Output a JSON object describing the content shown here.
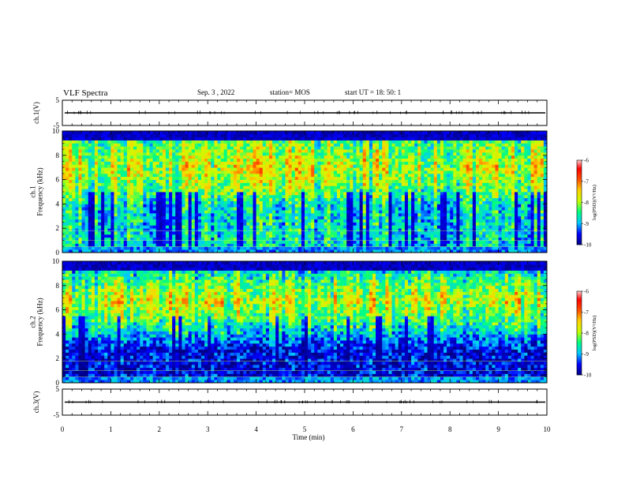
{
  "header": {
    "title": "VLF Spectra",
    "date": "Sep. 3  , 2022",
    "station": "station= MOS",
    "start": "start  UT =   18: 50: 1"
  },
  "chart_data": [
    {
      "type": "line",
      "name": "ch1-waveform",
      "ylabel": "ch.1(V)",
      "ylim": [
        -5,
        5
      ],
      "yticks": [
        "5",
        "-5"
      ],
      "xlim": [
        0,
        10
      ],
      "level": 0
    },
    {
      "type": "heatmap",
      "name": "ch1-spectrogram",
      "ylabel": "ch.1\nFrequency (kHz)",
      "ylim": [
        0,
        10
      ],
      "yticks": [
        "0",
        "2",
        "4",
        "6",
        "8",
        "10"
      ],
      "xlim": [
        0,
        10
      ],
      "colorbar": {
        "label": "log(PSD)(V²/Hz)",
        "ticks": [
          "-6",
          "-7",
          "-8",
          "-9",
          "-10"
        ],
        "range": [
          -10,
          -6
        ]
      },
      "intense_band_khz": [
        5,
        9
      ]
    },
    {
      "type": "heatmap",
      "name": "ch2-spectrogram",
      "ylabel": "ch.2\nFrequency (kHz)",
      "ylim": [
        0,
        10
      ],
      "yticks": [
        "0",
        "2",
        "4",
        "6",
        "8",
        "10"
      ],
      "xlim": [
        0,
        10
      ],
      "colorbar": {
        "label": "log(PSD)(V²/Hz)",
        "ticks": [
          "-6",
          "-7",
          "-8",
          "-9",
          "-10"
        ],
        "range": [
          -10,
          -6
        ]
      },
      "intense_band_khz": [
        5.5,
        8
      ]
    },
    {
      "type": "line",
      "name": "ch3-waveform",
      "ylabel": "ch.3(V)",
      "ylim": [
        -5,
        5
      ],
      "yticks": [
        "5",
        "-5"
      ],
      "xlim": [
        0,
        10
      ],
      "level": 0
    }
  ],
  "xaxis": {
    "label": "Time  (min)",
    "ticks": [
      "0",
      "1",
      "2",
      "3",
      "4",
      "5",
      "6",
      "7",
      "8",
      "9",
      "10"
    ]
  },
  "colormap": [
    "#000080",
    "#0000ff",
    "#00c8ff",
    "#00ff80",
    "#c8ff00",
    "#ffd200",
    "#ff5000",
    "#ff0000",
    "#ffc8c8",
    "#ffffff"
  ]
}
